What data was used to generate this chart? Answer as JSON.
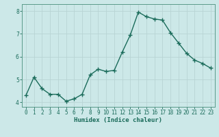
{
  "xlabel": "Humidex (Indice chaleur)",
  "x": [
    0,
    1,
    2,
    3,
    4,
    5,
    6,
    7,
    8,
    9,
    10,
    11,
    12,
    13,
    14,
    15,
    16,
    17,
    18,
    19,
    20,
    21,
    22,
    23
  ],
  "y": [
    4.3,
    5.1,
    4.6,
    4.35,
    4.35,
    4.05,
    4.15,
    4.35,
    5.2,
    5.45,
    5.35,
    5.4,
    6.2,
    6.95,
    7.95,
    7.75,
    7.65,
    7.6,
    7.05,
    6.6,
    6.15,
    5.85,
    5.7,
    5.5
  ],
  "line_color": "#1a6b5a",
  "marker": "+",
  "marker_size": 4,
  "marker_lw": 1.0,
  "line_width": 1.0,
  "bg_color": "#cce8e8",
  "grid_color": "#b8d4d4",
  "spine_color": "#5a9a8a",
  "tick_color": "#1a6b5a",
  "label_color": "#1a6b5a",
  "ylim": [
    3.8,
    8.3
  ],
  "yticks": [
    4,
    5,
    6,
    7,
    8
  ],
  "xlim": [
    -0.5,
    23.5
  ],
  "axis_fontsize": 6.5,
  "tick_fontsize": 5.5
}
